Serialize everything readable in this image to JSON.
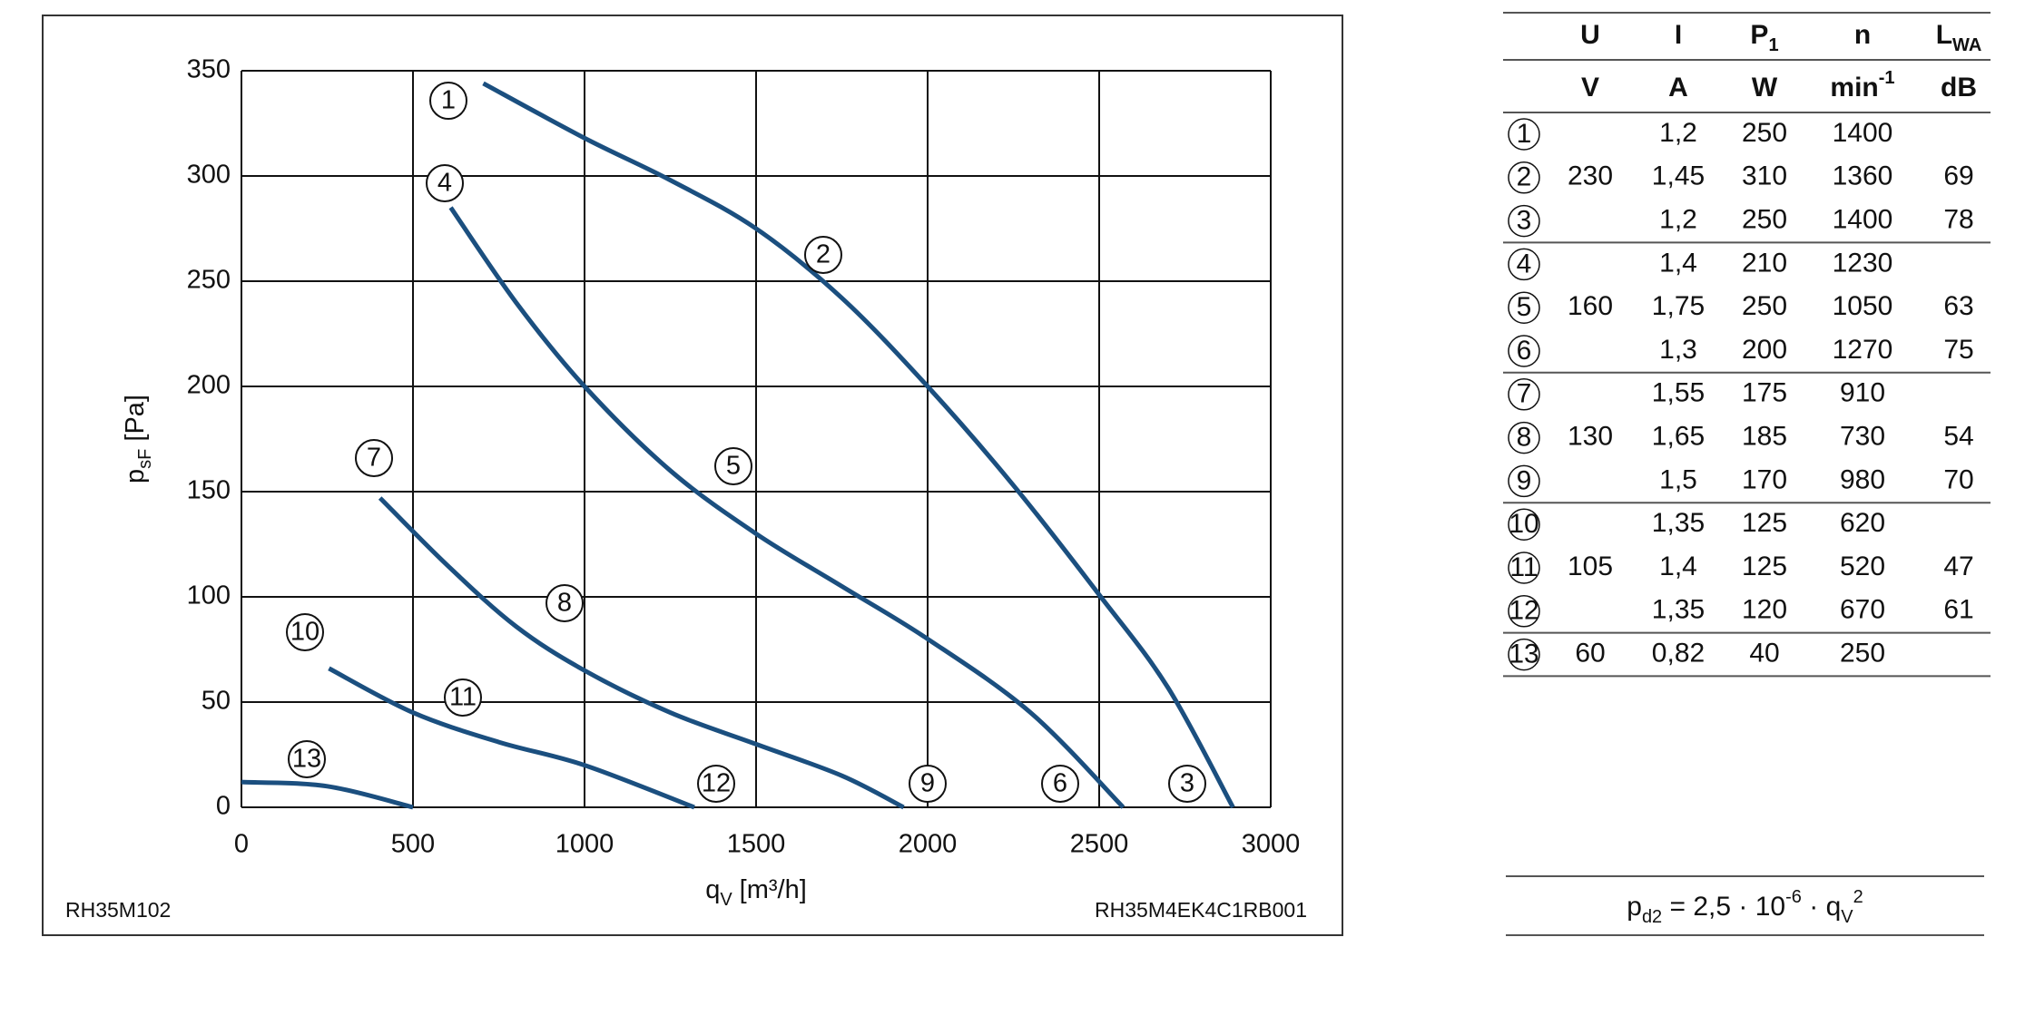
{
  "chart_data": {
    "type": "line",
    "x_label": {
      "text": "q",
      "sub": "V",
      "unit": "[m³/h]"
    },
    "y_label": {
      "text": "p",
      "sub": "sF",
      "unit": "[Pa]"
    },
    "xlim": [
      0,
      3000
    ],
    "xticks": [
      0,
      500,
      1000,
      1500,
      2000,
      2500,
      3000
    ],
    "ylim": [
      0,
      350
    ],
    "yticks": [
      0,
      50,
      100,
      150,
      200,
      250,
      300,
      350
    ],
    "grid": true,
    "series": [
      {
        "color": "#1b4f7f",
        "labels": [
          "1",
          "2",
          "3"
        ],
        "x": [
          705,
          1000,
          1250,
          1500,
          1750,
          2000,
          2250,
          2500,
          2700,
          2890
        ],
        "values": [
          344,
          318,
          298,
          275,
          242,
          200,
          153,
          101,
          57,
          0
        ]
      },
      {
        "color": "#1b4f7f",
        "labels": [
          "4",
          "5",
          "6"
        ],
        "x": [
          610,
          800,
          1000,
          1250,
          1500,
          1750,
          2000,
          2300,
          2570
        ],
        "values": [
          285,
          240,
          200,
          160,
          130,
          105,
          80,
          45,
          0
        ]
      },
      {
        "color": "#1b4f7f",
        "labels": [
          "7",
          "8",
          "9"
        ],
        "x": [
          404,
          600,
          800,
          1000,
          1250,
          1500,
          1750,
          1930
        ],
        "values": [
          147,
          115,
          86,
          65,
          45,
          30,
          15,
          0
        ]
      },
      {
        "color": "#1b4f7f",
        "labels": [
          "10",
          "11",
          "12"
        ],
        "x": [
          255,
          500,
          750,
          1000,
          1320
        ],
        "values": [
          66,
          45,
          31,
          20,
          0
        ]
      },
      {
        "color": "#1b4f7f",
        "labels": [
          "13"
        ],
        "x": [
          0,
          250,
          500
        ],
        "values": [
          12,
          10,
          0
        ]
      }
    ],
    "notes": [
      "RH35M102",
      "RH35M4EK4C1RB001"
    ]
  },
  "table": {
    "header": [
      {
        "text": "U"
      },
      {
        "text": "I"
      },
      {
        "text": "P",
        "sub": "1"
      },
      {
        "text": "n"
      },
      {
        "text": "L",
        "sub": "WA"
      }
    ],
    "units": [
      {
        "text": "V"
      },
      {
        "text": "A"
      },
      {
        "text": "W"
      },
      {
        "text": "min",
        "sup": "-1"
      },
      {
        "text": "dB"
      }
    ],
    "groups": [
      {
        "U": "230",
        "rows": [
          [
            "1",
            "1,2",
            "250",
            "1400"
          ],
          [
            "2",
            "1,45",
            "310",
            "1360",
            "69"
          ],
          [
            "3",
            "1,2",
            "250",
            "1400",
            "78"
          ]
        ]
      },
      {
        "U": "160",
        "rows": [
          [
            "4",
            "1,4",
            "210",
            "1230"
          ],
          [
            "5",
            "1,75",
            "250",
            "1050",
            "63"
          ],
          [
            "6",
            "1,3",
            "200",
            "1270",
            "75"
          ]
        ]
      },
      {
        "U": "130",
        "rows": [
          [
            "7",
            "1,55",
            "175",
            "910"
          ],
          [
            "8",
            "1,65",
            "185",
            "730",
            "54"
          ],
          [
            "9",
            "1,5",
            "170",
            "980",
            "70"
          ]
        ]
      },
      {
        "U": "105",
        "rows": [
          [
            "10",
            "1,35",
            "125",
            "620"
          ],
          [
            "11",
            "1,4",
            "125",
            "520",
            "47"
          ],
          [
            "12",
            "1,35",
            "120",
            "670",
            "61"
          ]
        ]
      },
      {
        "U": "60",
        "rows": [
          [
            "13",
            "0,82",
            "40",
            "250"
          ]
        ]
      }
    ],
    "formula": [
      {
        "text": "p"
      },
      {
        "sub": "d2"
      },
      {
        "text": " = 2,5 · 10"
      },
      {
        "sup": "-6"
      },
      {
        "text": " · q"
      },
      {
        "sub": "V"
      },
      {
        "sup": "2"
      }
    ]
  }
}
